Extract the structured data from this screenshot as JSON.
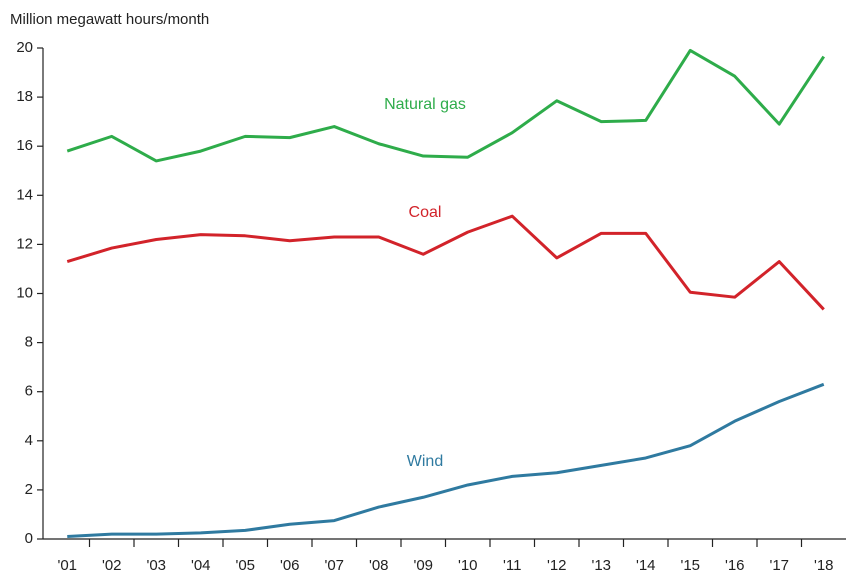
{
  "chart_data": {
    "type": "line",
    "y_axis_label": "Million megawatt hours/month",
    "categories": [
      "'01",
      "'02",
      "'03",
      "'04",
      "'05",
      "'06",
      "'07",
      "'08",
      "'09",
      "'10",
      "'11",
      "'12",
      "'13",
      "'14",
      "'15",
      "'16",
      "'17",
      "'18"
    ],
    "series": [
      {
        "name": "Natural gas",
        "color": "#2eac4a",
        "values": [
          15.8,
          16.4,
          15.4,
          15.8,
          16.4,
          16.35,
          16.8,
          16.1,
          15.6,
          15.55,
          16.55,
          17.85,
          17.0,
          17.05,
          19.9,
          18.85,
          16.9,
          19.65
        ]
      },
      {
        "name": "Coal",
        "color": "#d2232a",
        "values": [
          11.3,
          11.85,
          12.2,
          12.4,
          12.35,
          12.15,
          12.3,
          12.3,
          11.6,
          12.5,
          13.15,
          11.45,
          12.45,
          12.45,
          10.05,
          9.85,
          11.3,
          9.35
        ]
      },
      {
        "name": "Wind",
        "color": "#2f7aa0",
        "values": [
          0.1,
          0.2,
          0.2,
          0.25,
          0.35,
          0.6,
          0.75,
          1.3,
          1.7,
          2.2,
          2.55,
          2.7,
          3.0,
          3.3,
          3.8,
          4.8,
          5.6,
          6.3
        ]
      }
    ],
    "ylim": [
      0,
      20
    ],
    "yticks": [
      0,
      2,
      4,
      6,
      8,
      10,
      12,
      14,
      16,
      18,
      20
    ],
    "grid": false
  }
}
